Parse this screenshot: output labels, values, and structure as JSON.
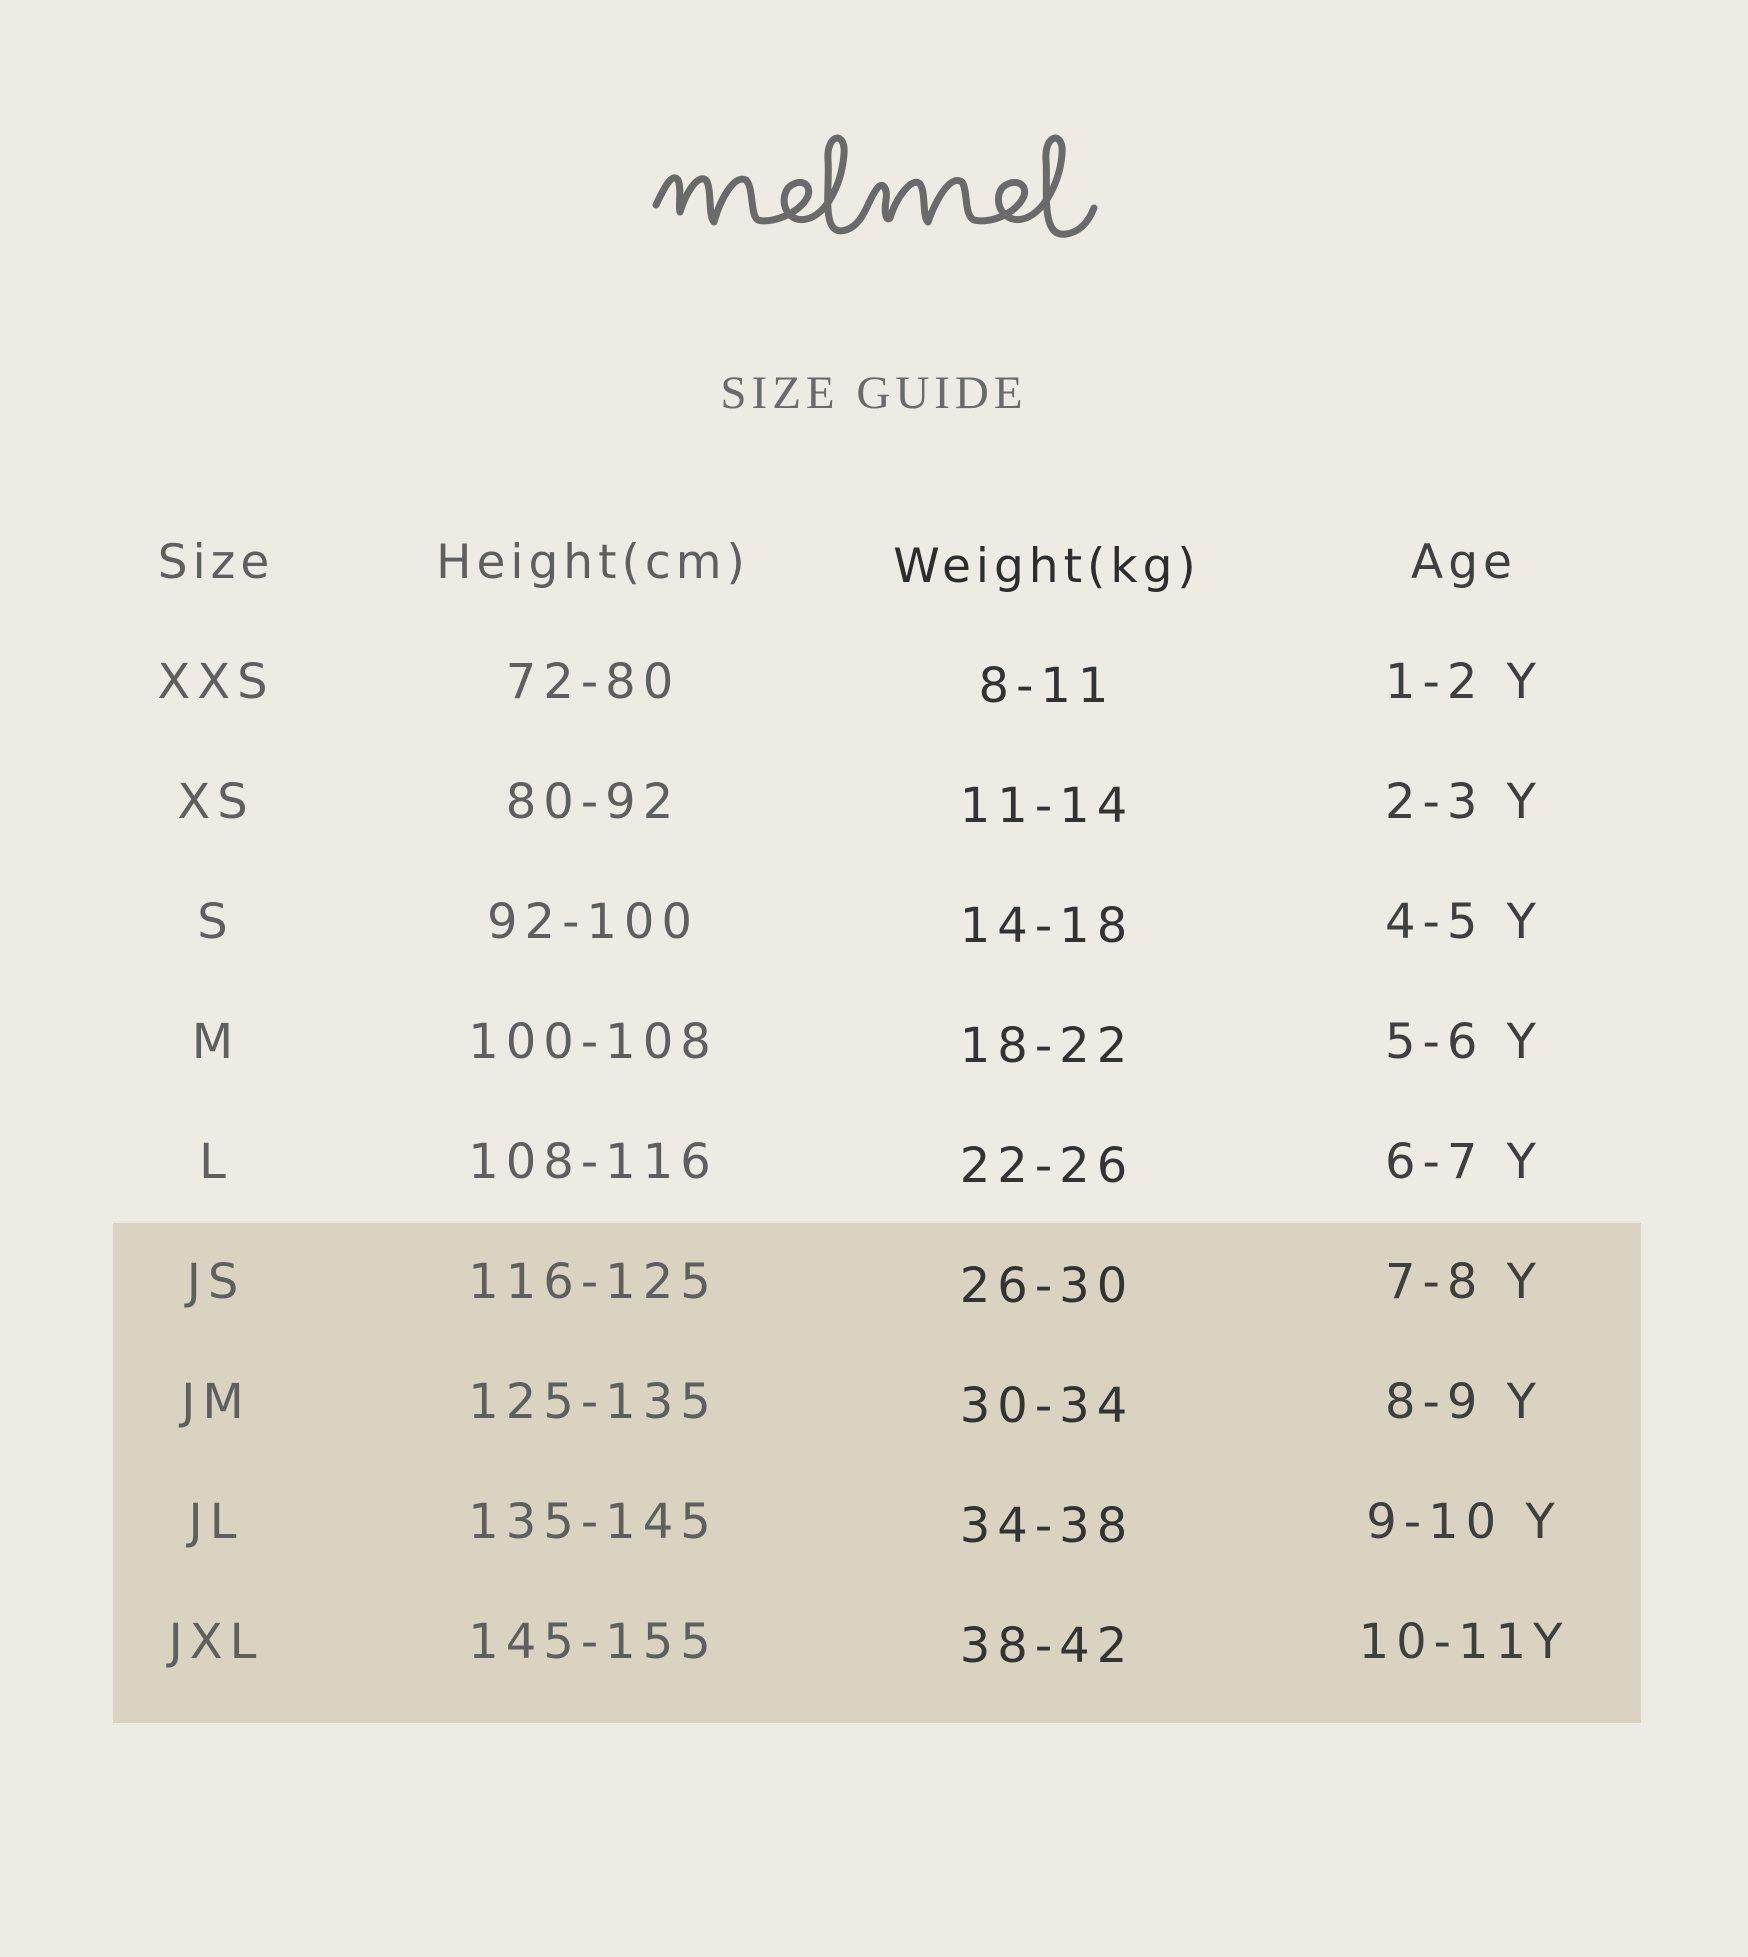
{
  "brand": {
    "logo_text": "melmel",
    "color": "#6a6a6a"
  },
  "title": "SIZE GUIDE",
  "colors": {
    "background": "#eeebe4",
    "highlight_band": "#dbd3c1"
  },
  "table": {
    "headers": [
      "Size",
      "Height(cm)",
      "Weight(kg)",
      "Age"
    ],
    "rows": [
      [
        "XXS",
        "72-80",
        "8-11",
        "1-2 Y"
      ],
      [
        "XS",
        "80-92",
        "11-14",
        "2-3 Y"
      ],
      [
        "S",
        "92-100",
        "14-18",
        "4-5 Y"
      ],
      [
        "M",
        "100-108",
        "18-22",
        "5-6 Y"
      ],
      [
        "L",
        "108-116",
        "22-26",
        "6-7 Y"
      ],
      [
        "JS",
        "116-125",
        "26-30",
        "7-8 Y"
      ],
      [
        "JM",
        "125-135",
        "30-34",
        "8-9 Y"
      ],
      [
        "JL",
        "135-145",
        "34-38",
        "9-10 Y"
      ],
      [
        "JXL",
        "145-155",
        "38-42",
        "10-11Y"
      ]
    ],
    "highlighted_rows": [
      "JS",
      "JM",
      "JL",
      "JXL"
    ]
  }
}
